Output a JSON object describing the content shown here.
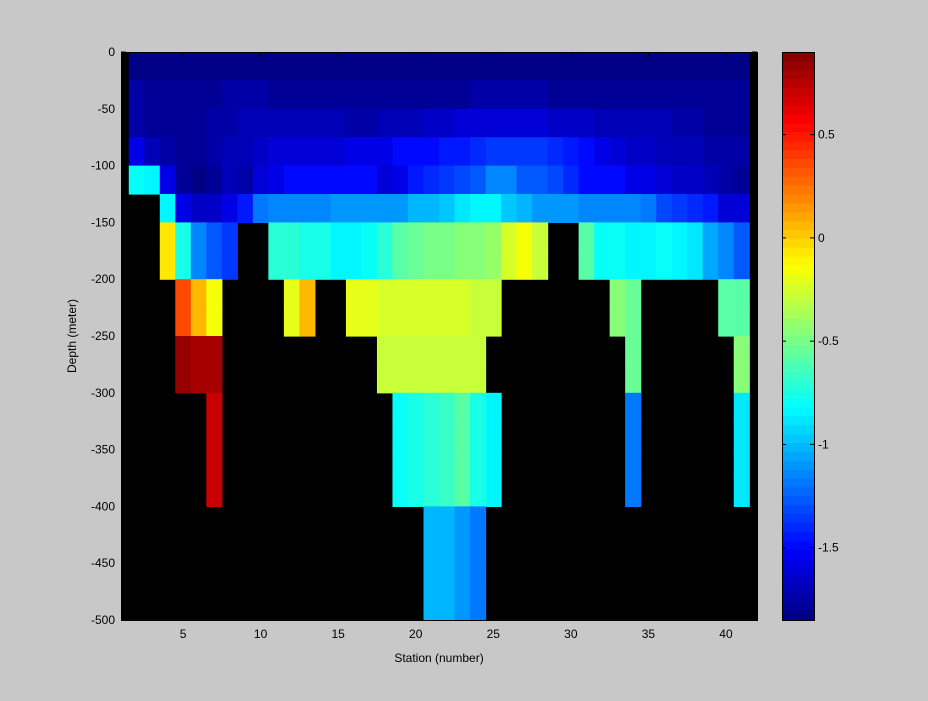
{
  "chart_data": {
    "type": "heatmap",
    "xlabel": "Station (number)",
    "ylabel": "Depth (meter)",
    "xlim": [
      1,
      42
    ],
    "ylim": [
      -500,
      0
    ],
    "xticks": [
      "5",
      "10",
      "15",
      "20",
      "25",
      "30",
      "35",
      "40"
    ],
    "yticks": [
      "0",
      "-50",
      "-100",
      "-150",
      "-200",
      "-250",
      "-300",
      "-350",
      "-400",
      "-450",
      "-500"
    ],
    "colorbar": {
      "range": [
        -1.85,
        0.9
      ],
      "ticks": [
        "0.5",
        "0",
        "-0.5",
        "-1",
        "-1.5"
      ],
      "colormap": "jet",
      "levels": 64
    },
    "mask_color": "#000000",
    "background": "#c8c8c8",
    "grid": false,
    "column_stations": [
      2,
      3,
      4,
      5,
      6,
      7,
      8,
      9,
      10,
      11,
      12,
      13,
      14,
      15,
      16,
      17,
      18,
      19,
      20,
      21,
      22,
      23,
      24,
      25,
      26,
      27,
      28,
      29,
      30,
      31,
      32,
      33,
      34,
      35,
      36,
      37,
      38,
      39,
      40,
      41
    ],
    "row_depths": [
      0,
      -25,
      -50,
      -75,
      -100,
      -125,
      -150,
      -175,
      -200,
      -225,
      -250,
      -275,
      -300,
      -325,
      -350,
      -375,
      -400,
      -425,
      -450,
      -475,
      -500
    ],
    "values": [
      [
        -1.85,
        -1.85,
        -1.85,
        -1.85,
        -1.85,
        -1.85,
        -1.85,
        -1.85,
        -1.85,
        -1.85,
        -1.85,
        -1.85,
        -1.85,
        -1.85,
        -1.85,
        -1.85,
        -1.85,
        -1.85,
        -1.85,
        -1.85,
        -1.85,
        -1.85,
        -1.85,
        -1.85,
        -1.85,
        -1.85,
        -1.85,
        -1.85,
        -1.85,
        -1.85,
        -1.85,
        -1.85,
        -1.85,
        -1.85,
        -1.85,
        -1.85,
        -1.85,
        -1.85,
        -1.85,
        -1.85
      ],
      [
        -1.75,
        -1.8,
        -1.8,
        -1.8,
        -1.8,
        -1.8,
        -1.75,
        -1.75,
        -1.75,
        -1.8,
        -1.8,
        -1.8,
        -1.8,
        -1.8,
        -1.8,
        -1.8,
        -1.8,
        -1.8,
        -1.8,
        -1.8,
        -1.8,
        -1.8,
        -1.75,
        -1.75,
        -1.75,
        -1.75,
        -1.75,
        -1.8,
        -1.8,
        -1.8,
        -1.8,
        -1.8,
        -1.8,
        -1.8,
        -1.8,
        -1.8,
        -1.8,
        -1.8,
        -1.8,
        -1.8
      ],
      [
        -1.75,
        -1.8,
        -1.8,
        -1.8,
        -1.8,
        -1.75,
        -1.75,
        -1.7,
        -1.7,
        -1.7,
        -1.7,
        -1.7,
        -1.7,
        -1.7,
        -1.75,
        -1.75,
        -1.7,
        -1.7,
        -1.7,
        -1.65,
        -1.65,
        -1.6,
        -1.6,
        -1.6,
        -1.6,
        -1.6,
        -1.6,
        -1.65,
        -1.65,
        -1.65,
        -1.7,
        -1.7,
        -1.7,
        -1.7,
        -1.7,
        -1.75,
        -1.75,
        -1.8,
        -1.8,
        -1.8
      ],
      [
        -1.55,
        -1.7,
        -1.75,
        -1.8,
        -1.8,
        -1.75,
        -1.7,
        -1.7,
        -1.65,
        -1.6,
        -1.6,
        -1.6,
        -1.6,
        -1.6,
        -1.55,
        -1.55,
        -1.55,
        -1.5,
        -1.5,
        -1.5,
        -1.45,
        -1.45,
        -1.4,
        -1.35,
        -1.35,
        -1.35,
        -1.35,
        -1.4,
        -1.45,
        -1.5,
        -1.55,
        -1.6,
        -1.65,
        -1.65,
        -1.7,
        -1.7,
        -1.7,
        -1.75,
        -1.75,
        -1.75
      ],
      [
        -0.8,
        -0.85,
        -1.55,
        -1.8,
        -1.85,
        -1.8,
        -1.7,
        -1.75,
        -1.6,
        -1.55,
        -1.5,
        -1.5,
        -1.5,
        -1.5,
        -1.5,
        -1.5,
        -1.6,
        -1.55,
        -1.45,
        -1.4,
        -1.35,
        -1.3,
        -1.25,
        -1.15,
        -1.15,
        -1.25,
        -1.25,
        -1.3,
        -1.4,
        -1.5,
        -1.5,
        -1.5,
        -1.55,
        -1.55,
        -1.6,
        -1.65,
        -1.65,
        -1.7,
        -1.75,
        -1.8
      ],
      [
        null,
        null,
        -0.85,
        -1.55,
        -1.65,
        -1.65,
        -1.55,
        -1.45,
        -1.2,
        -1.15,
        -1.15,
        -1.15,
        -1.15,
        -1.1,
        -1.1,
        -1.1,
        -1.1,
        -1.1,
        -1.0,
        -1.0,
        -0.95,
        -0.9,
        -0.85,
        -0.85,
        -0.95,
        -1.0,
        -1.1,
        -1.1,
        -1.1,
        -1.15,
        -1.15,
        -1.15,
        -1.15,
        -1.2,
        -1.3,
        -1.35,
        -1.4,
        -1.45,
        -1.6,
        -1.6
      ],
      [
        null,
        null,
        -0.05,
        -0.75,
        -1.15,
        -1.25,
        -1.35,
        null,
        null,
        -0.7,
        -0.7,
        -0.75,
        -0.75,
        -0.85,
        -0.85,
        -0.8,
        -0.7,
        -0.6,
        -0.55,
        -0.5,
        -0.5,
        -0.45,
        -0.45,
        -0.4,
        -0.25,
        -0.15,
        -0.3,
        null,
        null,
        -0.6,
        -0.8,
        -0.8,
        -0.85,
        -0.85,
        -0.8,
        -0.85,
        -0.9,
        -1.05,
        -1.15,
        -1.25
      ],
      [
        null,
        null,
        -0.05,
        -0.75,
        -1.15,
        -1.25,
        -1.35,
        null,
        null,
        -0.7,
        -0.7,
        -0.75,
        -0.75,
        -0.85,
        -0.85,
        -0.8,
        -0.7,
        -0.6,
        -0.55,
        -0.5,
        -0.5,
        -0.45,
        -0.45,
        -0.4,
        -0.25,
        -0.15,
        -0.3,
        null,
        null,
        -0.6,
        -0.8,
        -0.8,
        -0.85,
        -0.85,
        -0.8,
        -0.85,
        -0.9,
        -1.05,
        -1.15,
        -1.25
      ],
      [
        null,
        null,
        null,
        0.35,
        0.05,
        -0.15,
        null,
        null,
        null,
        null,
        -0.2,
        0.05,
        null,
        null,
        -0.2,
        -0.2,
        -0.25,
        -0.25,
        -0.25,
        -0.25,
        -0.25,
        -0.25,
        -0.3,
        -0.3,
        null,
        null,
        null,
        null,
        null,
        null,
        null,
        -0.45,
        -0.55,
        null,
        null,
        null,
        null,
        null,
        -0.6,
        -0.6
      ],
      [
        null,
        null,
        null,
        0.35,
        0.05,
        -0.15,
        null,
        null,
        null,
        null,
        -0.2,
        0.05,
        null,
        null,
        -0.2,
        -0.2,
        -0.25,
        -0.25,
        -0.25,
        -0.25,
        -0.25,
        -0.25,
        -0.3,
        -0.3,
        null,
        null,
        null,
        null,
        null,
        null,
        null,
        -0.45,
        -0.55,
        null,
        null,
        null,
        null,
        null,
        -0.6,
        -0.6
      ],
      [
        null,
        null,
        null,
        0.85,
        0.8,
        0.8,
        null,
        null,
        null,
        null,
        null,
        null,
        null,
        null,
        null,
        null,
        -0.3,
        -0.3,
        -0.3,
        -0.3,
        -0.3,
        -0.3,
        -0.3,
        null,
        null,
        null,
        null,
        null,
        null,
        null,
        null,
        null,
        -0.55,
        null,
        null,
        null,
        null,
        null,
        null,
        -0.45
      ],
      [
        null,
        null,
        null,
        0.85,
        0.8,
        0.8,
        null,
        null,
        null,
        null,
        null,
        null,
        null,
        null,
        null,
        null,
        -0.3,
        -0.3,
        -0.3,
        -0.3,
        -0.3,
        -0.3,
        -0.3,
        null,
        null,
        null,
        null,
        null,
        null,
        null,
        null,
        null,
        -0.55,
        null,
        null,
        null,
        null,
        null,
        null,
        -0.45
      ],
      [
        null,
        null,
        null,
        null,
        null,
        0.7,
        null,
        null,
        null,
        null,
        null,
        null,
        null,
        null,
        null,
        null,
        null,
        -0.8,
        -0.75,
        -0.7,
        -0.65,
        -0.6,
        -0.75,
        -0.85,
        null,
        null,
        null,
        null,
        null,
        null,
        null,
        null,
        -1.2,
        null,
        null,
        null,
        null,
        null,
        null,
        -0.9
      ],
      [
        null,
        null,
        null,
        null,
        null,
        0.7,
        null,
        null,
        null,
        null,
        null,
        null,
        null,
        null,
        null,
        null,
        null,
        -0.8,
        -0.75,
        -0.7,
        -0.65,
        -0.6,
        -0.75,
        -0.85,
        null,
        null,
        null,
        null,
        null,
        null,
        null,
        null,
        -1.2,
        null,
        null,
        null,
        null,
        null,
        null,
        -0.9
      ],
      [
        null,
        null,
        null,
        null,
        null,
        0.7,
        null,
        null,
        null,
        null,
        null,
        null,
        null,
        null,
        null,
        null,
        null,
        -0.8,
        -0.75,
        -0.7,
        -0.65,
        -0.6,
        -0.75,
        -0.85,
        null,
        null,
        null,
        null,
        null,
        null,
        null,
        null,
        -1.2,
        null,
        null,
        null,
        null,
        null,
        null,
        -0.9
      ],
      [
        null,
        null,
        null,
        null,
        null,
        0.7,
        null,
        null,
        null,
        null,
        null,
        null,
        null,
        null,
        null,
        null,
        null,
        -0.8,
        -0.75,
        -0.7,
        -0.65,
        -0.6,
        -0.75,
        -0.85,
        null,
        null,
        null,
        null,
        null,
        null,
        null,
        null,
        -1.2,
        null,
        null,
        null,
        null,
        null,
        null,
        -0.9
      ],
      [
        null,
        null,
        null,
        null,
        null,
        null,
        null,
        null,
        null,
        null,
        null,
        null,
        null,
        null,
        null,
        null,
        null,
        null,
        null,
        -1.0,
        -1.0,
        -1.1,
        -1.2,
        null,
        null,
        null,
        null,
        null,
        null,
        null,
        null,
        null,
        null,
        null,
        null,
        null,
        null,
        null,
        null,
        null
      ],
      [
        null,
        null,
        null,
        null,
        null,
        null,
        null,
        null,
        null,
        null,
        null,
        null,
        null,
        null,
        null,
        null,
        null,
        null,
        null,
        -1.0,
        -1.0,
        -1.1,
        -1.2,
        null,
        null,
        null,
        null,
        null,
        null,
        null,
        null,
        null,
        null,
        null,
        null,
        null,
        null,
        null,
        null,
        null
      ],
      [
        null,
        null,
        null,
        null,
        null,
        null,
        null,
        null,
        null,
        null,
        null,
        null,
        null,
        null,
        null,
        null,
        null,
        null,
        null,
        -1.0,
        -1.0,
        -1.1,
        -1.2,
        null,
        null,
        null,
        null,
        null,
        null,
        null,
        null,
        null,
        null,
        null,
        null,
        null,
        null,
        null,
        null,
        null
      ],
      [
        null,
        null,
        null,
        null,
        null,
        null,
        null,
        null,
        null,
        null,
        null,
        null,
        null,
        null,
        null,
        null,
        null,
        null,
        null,
        -1.0,
        -1.0,
        -1.1,
        -1.2,
        null,
        null,
        null,
        null,
        null,
        null,
        null,
        null,
        null,
        null,
        null,
        null,
        null,
        null,
        null,
        null,
        null
      ]
    ]
  }
}
